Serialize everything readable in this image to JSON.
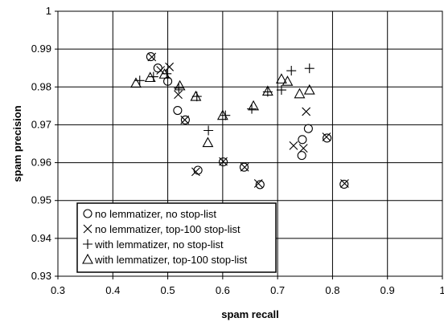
{
  "chart_data": {
    "type": "scatter",
    "title": "",
    "xlabel": "spam recall",
    "ylabel": "spam precision",
    "xlim": [
      0.3,
      1
    ],
    "ylim": [
      0.93,
      1
    ],
    "x_ticks": [
      0.3,
      0.4,
      0.5,
      0.6,
      0.7,
      0.8,
      0.9,
      1
    ],
    "y_ticks": [
      0.93,
      0.94,
      0.95,
      0.96,
      0.97,
      0.98,
      0.99,
      1
    ],
    "x_tick_labels": [
      "0.3",
      "0.4",
      "0.5",
      "0.6",
      "0.7",
      "0.8",
      "0.9",
      "1"
    ],
    "y_tick_labels": [
      "0.93",
      "0.94",
      "0.95",
      "0.96",
      "0.97",
      "0.98",
      "0.99",
      "1"
    ],
    "grid": true,
    "legend_position": "bottom-left",
    "series": [
      {
        "name": "no lemmatizer, no stop-list",
        "marker": "circle",
        "points": [
          [
            0.469,
            0.988
          ],
          [
            0.482,
            0.985
          ],
          [
            0.5,
            0.9815
          ],
          [
            0.518,
            0.9738
          ],
          [
            0.532,
            0.9713
          ],
          [
            0.555,
            0.958
          ],
          [
            0.601,
            0.9602
          ],
          [
            0.639,
            0.9588
          ],
          [
            0.668,
            0.9542
          ],
          [
            0.744,
            0.9619
          ],
          [
            0.745,
            0.9661
          ],
          [
            0.756,
            0.969
          ],
          [
            0.79,
            0.9665
          ],
          [
            0.821,
            0.9543
          ]
        ]
      },
      {
        "name": "no lemmatizer, top-100 stop-list",
        "marker": "x",
        "points": [
          [
            0.471,
            0.9879
          ],
          [
            0.487,
            0.9844
          ],
          [
            0.503,
            0.9853
          ],
          [
            0.519,
            0.978
          ],
          [
            0.531,
            0.9713
          ],
          [
            0.551,
            0.9576
          ],
          [
            0.601,
            0.9603
          ],
          [
            0.64,
            0.9588
          ],
          [
            0.665,
            0.9545
          ],
          [
            0.729,
            0.9645
          ],
          [
            0.747,
            0.9638
          ],
          [
            0.752,
            0.9735
          ],
          [
            0.789,
            0.9668
          ],
          [
            0.822,
            0.9545
          ]
        ]
      },
      {
        "name": "with lemmatizer, no stop-list",
        "marker": "plus",
        "points": [
          [
            0.449,
            0.9817
          ],
          [
            0.474,
            0.9827
          ],
          [
            0.498,
            0.9835
          ],
          [
            0.52,
            0.9797
          ],
          [
            0.553,
            0.9775
          ],
          [
            0.574,
            0.9685
          ],
          [
            0.605,
            0.9725
          ],
          [
            0.653,
            0.9742
          ],
          [
            0.682,
            0.9787
          ],
          [
            0.707,
            0.9792
          ],
          [
            0.725,
            0.9843
          ],
          [
            0.758,
            0.9849
          ]
        ]
      },
      {
        "name": "with lemmatizer, top-100 stop-list",
        "marker": "triangle",
        "points": [
          [
            0.442,
            0.981
          ],
          [
            0.468,
            0.9825
          ],
          [
            0.494,
            0.9834
          ],
          [
            0.522,
            0.9803
          ],
          [
            0.551,
            0.9775
          ],
          [
            0.573,
            0.9653
          ],
          [
            0.6,
            0.9725
          ],
          [
            0.656,
            0.975
          ],
          [
            0.682,
            0.9789
          ],
          [
            0.707,
            0.9821
          ],
          [
            0.718,
            0.9815
          ],
          [
            0.74,
            0.9782
          ],
          [
            0.758,
            0.9792
          ]
        ]
      }
    ]
  }
}
